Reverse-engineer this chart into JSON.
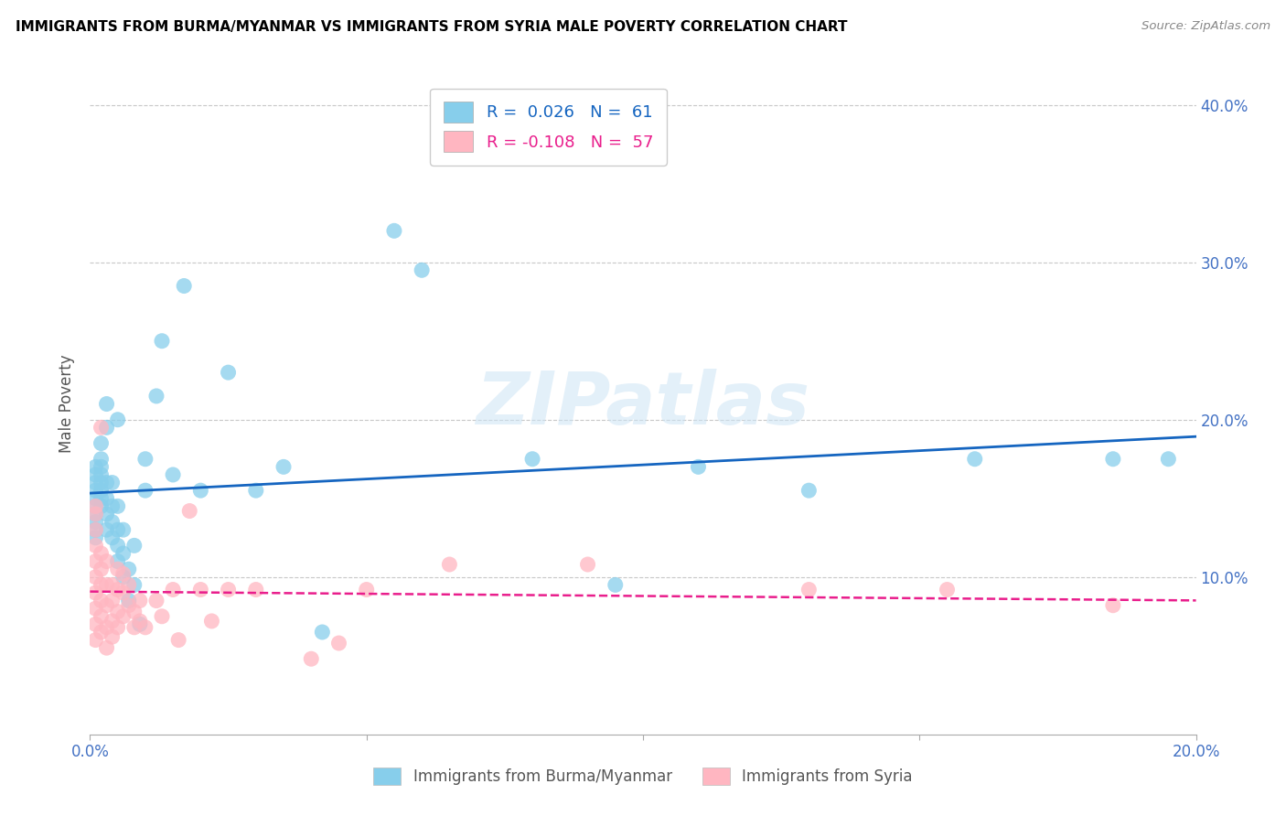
{
  "title": "IMMIGRANTS FROM BURMA/MYANMAR VS IMMIGRANTS FROM SYRIA MALE POVERTY CORRELATION CHART",
  "source": "Source: ZipAtlas.com",
  "ylabel": "Male Poverty",
  "xlim": [
    0.0,
    0.2
  ],
  "ylim": [
    0.0,
    0.42
  ],
  "xticks": [
    0.0,
    0.05,
    0.1,
    0.15,
    0.2
  ],
  "xticklabels": [
    "0.0%",
    "",
    "",
    "",
    "20.0%"
  ],
  "yticks": [
    0.1,
    0.2,
    0.3,
    0.4
  ],
  "yticklabels": [
    "10.0%",
    "20.0%",
    "30.0%",
    "40.0%"
  ],
  "legend_burma": "R =  0.026   N =  61",
  "legend_syria": "R = -0.108   N =  57",
  "color_burma": "#87CEEB",
  "color_syria": "#FFB6C1",
  "color_burma_line": "#1565C0",
  "color_syria_line": "#E91E8C",
  "color_axis": "#4472C4",
  "watermark_text": "ZIPatlas",
  "legend_label_burma": "Immigrants from Burma/Myanmar",
  "legend_label_syria": "Immigrants from Syria",
  "burma_x": [
    0.001,
    0.001,
    0.001,
    0.001,
    0.001,
    0.001,
    0.001,
    0.001,
    0.001,
    0.001,
    0.002,
    0.002,
    0.002,
    0.002,
    0.002,
    0.002,
    0.002,
    0.002,
    0.003,
    0.003,
    0.003,
    0.003,
    0.003,
    0.003,
    0.004,
    0.004,
    0.004,
    0.004,
    0.005,
    0.005,
    0.005,
    0.005,
    0.005,
    0.006,
    0.006,
    0.006,
    0.007,
    0.007,
    0.008,
    0.008,
    0.009,
    0.01,
    0.01,
    0.012,
    0.013,
    0.015,
    0.017,
    0.02,
    0.025,
    0.03,
    0.035,
    0.042,
    0.055,
    0.06,
    0.08,
    0.095,
    0.11,
    0.13,
    0.16,
    0.185,
    0.195
  ],
  "burma_y": [
    0.155,
    0.16,
    0.165,
    0.145,
    0.14,
    0.135,
    0.13,
    0.125,
    0.15,
    0.17,
    0.155,
    0.16,
    0.17,
    0.145,
    0.15,
    0.165,
    0.175,
    0.185,
    0.13,
    0.14,
    0.15,
    0.16,
    0.195,
    0.21,
    0.125,
    0.135,
    0.145,
    0.16,
    0.11,
    0.12,
    0.13,
    0.145,
    0.2,
    0.1,
    0.115,
    0.13,
    0.085,
    0.105,
    0.095,
    0.12,
    0.07,
    0.155,
    0.175,
    0.215,
    0.25,
    0.165,
    0.285,
    0.155,
    0.23,
    0.155,
    0.17,
    0.065,
    0.32,
    0.295,
    0.175,
    0.095,
    0.17,
    0.155,
    0.175,
    0.175,
    0.175
  ],
  "syria_x": [
    0.001,
    0.001,
    0.001,
    0.001,
    0.001,
    0.001,
    0.001,
    0.001,
    0.001,
    0.001,
    0.002,
    0.002,
    0.002,
    0.002,
    0.002,
    0.002,
    0.002,
    0.003,
    0.003,
    0.003,
    0.003,
    0.003,
    0.004,
    0.004,
    0.004,
    0.004,
    0.005,
    0.005,
    0.005,
    0.005,
    0.006,
    0.006,
    0.006,
    0.007,
    0.007,
    0.008,
    0.008,
    0.009,
    0.009,
    0.01,
    0.012,
    0.013,
    0.015,
    0.016,
    0.018,
    0.02,
    0.022,
    0.025,
    0.03,
    0.04,
    0.045,
    0.05,
    0.065,
    0.09,
    0.13,
    0.155,
    0.185
  ],
  "syria_y": [
    0.13,
    0.14,
    0.145,
    0.06,
    0.07,
    0.08,
    0.09,
    0.1,
    0.11,
    0.12,
    0.065,
    0.075,
    0.085,
    0.095,
    0.105,
    0.115,
    0.195,
    0.055,
    0.068,
    0.082,
    0.095,
    0.11,
    0.062,
    0.072,
    0.085,
    0.095,
    0.068,
    0.078,
    0.092,
    0.105,
    0.075,
    0.09,
    0.102,
    0.082,
    0.095,
    0.068,
    0.078,
    0.072,
    0.085,
    0.068,
    0.085,
    0.075,
    0.092,
    0.06,
    0.142,
    0.092,
    0.072,
    0.092,
    0.092,
    0.048,
    0.058,
    0.092,
    0.108,
    0.108,
    0.092,
    0.092,
    0.082
  ]
}
